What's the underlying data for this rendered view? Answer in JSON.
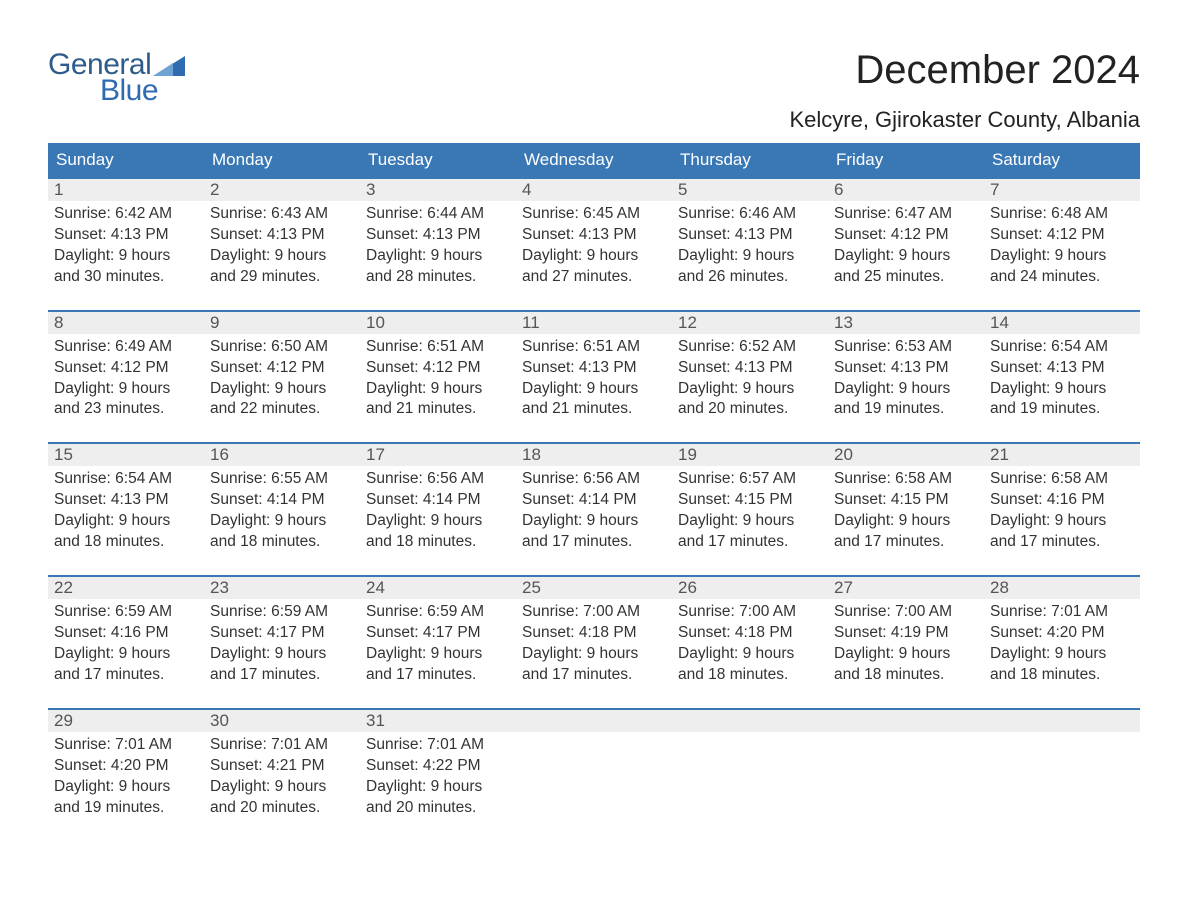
{
  "brand": {
    "top": "General",
    "bottom": "Blue",
    "text_color": "#2e6bb0",
    "flag_color": "#2e6bb0"
  },
  "header": {
    "month_title": "December 2024",
    "location": "Kelcyre, Gjirokaster County, Albania"
  },
  "colors": {
    "header_bg": "#3a78b5",
    "header_text": "#ffffff",
    "daynum_bg": "#eeeeee",
    "daynum_text": "#555555",
    "body_text": "#333333",
    "week_border": "#3a78b5",
    "page_bg": "#ffffff"
  },
  "typography": {
    "month_title_fontsize": 40,
    "location_fontsize": 22,
    "day_header_fontsize": 17,
    "daynum_fontsize": 17,
    "body_fontsize": 15.5
  },
  "day_headers": [
    "Sunday",
    "Monday",
    "Tuesday",
    "Wednesday",
    "Thursday",
    "Friday",
    "Saturday"
  ],
  "weeks": [
    [
      {
        "n": "1",
        "sr": "Sunrise: 6:42 AM",
        "ss": "Sunset: 4:13 PM",
        "dl": "Daylight: 9 hours and 30 minutes."
      },
      {
        "n": "2",
        "sr": "Sunrise: 6:43 AM",
        "ss": "Sunset: 4:13 PM",
        "dl": "Daylight: 9 hours and 29 minutes."
      },
      {
        "n": "3",
        "sr": "Sunrise: 6:44 AM",
        "ss": "Sunset: 4:13 PM",
        "dl": "Daylight: 9 hours and 28 minutes."
      },
      {
        "n": "4",
        "sr": "Sunrise: 6:45 AM",
        "ss": "Sunset: 4:13 PM",
        "dl": "Daylight: 9 hours and 27 minutes."
      },
      {
        "n": "5",
        "sr": "Sunrise: 6:46 AM",
        "ss": "Sunset: 4:13 PM",
        "dl": "Daylight: 9 hours and 26 minutes."
      },
      {
        "n": "6",
        "sr": "Sunrise: 6:47 AM",
        "ss": "Sunset: 4:12 PM",
        "dl": "Daylight: 9 hours and 25 minutes."
      },
      {
        "n": "7",
        "sr": "Sunrise: 6:48 AM",
        "ss": "Sunset: 4:12 PM",
        "dl": "Daylight: 9 hours and 24 minutes."
      }
    ],
    [
      {
        "n": "8",
        "sr": "Sunrise: 6:49 AM",
        "ss": "Sunset: 4:12 PM",
        "dl": "Daylight: 9 hours and 23 minutes."
      },
      {
        "n": "9",
        "sr": "Sunrise: 6:50 AM",
        "ss": "Sunset: 4:12 PM",
        "dl": "Daylight: 9 hours and 22 minutes."
      },
      {
        "n": "10",
        "sr": "Sunrise: 6:51 AM",
        "ss": "Sunset: 4:12 PM",
        "dl": "Daylight: 9 hours and 21 minutes."
      },
      {
        "n": "11",
        "sr": "Sunrise: 6:51 AM",
        "ss": "Sunset: 4:13 PM",
        "dl": "Daylight: 9 hours and 21 minutes."
      },
      {
        "n": "12",
        "sr": "Sunrise: 6:52 AM",
        "ss": "Sunset: 4:13 PM",
        "dl": "Daylight: 9 hours and 20 minutes."
      },
      {
        "n": "13",
        "sr": "Sunrise: 6:53 AM",
        "ss": "Sunset: 4:13 PM",
        "dl": "Daylight: 9 hours and 19 minutes."
      },
      {
        "n": "14",
        "sr": "Sunrise: 6:54 AM",
        "ss": "Sunset: 4:13 PM",
        "dl": "Daylight: 9 hours and 19 minutes."
      }
    ],
    [
      {
        "n": "15",
        "sr": "Sunrise: 6:54 AM",
        "ss": "Sunset: 4:13 PM",
        "dl": "Daylight: 9 hours and 18 minutes."
      },
      {
        "n": "16",
        "sr": "Sunrise: 6:55 AM",
        "ss": "Sunset: 4:14 PM",
        "dl": "Daylight: 9 hours and 18 minutes."
      },
      {
        "n": "17",
        "sr": "Sunrise: 6:56 AM",
        "ss": "Sunset: 4:14 PM",
        "dl": "Daylight: 9 hours and 18 minutes."
      },
      {
        "n": "18",
        "sr": "Sunrise: 6:56 AM",
        "ss": "Sunset: 4:14 PM",
        "dl": "Daylight: 9 hours and 17 minutes."
      },
      {
        "n": "19",
        "sr": "Sunrise: 6:57 AM",
        "ss": "Sunset: 4:15 PM",
        "dl": "Daylight: 9 hours and 17 minutes."
      },
      {
        "n": "20",
        "sr": "Sunrise: 6:58 AM",
        "ss": "Sunset: 4:15 PM",
        "dl": "Daylight: 9 hours and 17 minutes."
      },
      {
        "n": "21",
        "sr": "Sunrise: 6:58 AM",
        "ss": "Sunset: 4:16 PM",
        "dl": "Daylight: 9 hours and 17 minutes."
      }
    ],
    [
      {
        "n": "22",
        "sr": "Sunrise: 6:59 AM",
        "ss": "Sunset: 4:16 PM",
        "dl": "Daylight: 9 hours and 17 minutes."
      },
      {
        "n": "23",
        "sr": "Sunrise: 6:59 AM",
        "ss": "Sunset: 4:17 PM",
        "dl": "Daylight: 9 hours and 17 minutes."
      },
      {
        "n": "24",
        "sr": "Sunrise: 6:59 AM",
        "ss": "Sunset: 4:17 PM",
        "dl": "Daylight: 9 hours and 17 minutes."
      },
      {
        "n": "25",
        "sr": "Sunrise: 7:00 AM",
        "ss": "Sunset: 4:18 PM",
        "dl": "Daylight: 9 hours and 17 minutes."
      },
      {
        "n": "26",
        "sr": "Sunrise: 7:00 AM",
        "ss": "Sunset: 4:18 PM",
        "dl": "Daylight: 9 hours and 18 minutes."
      },
      {
        "n": "27",
        "sr": "Sunrise: 7:00 AM",
        "ss": "Sunset: 4:19 PM",
        "dl": "Daylight: 9 hours and 18 minutes."
      },
      {
        "n": "28",
        "sr": "Sunrise: 7:01 AM",
        "ss": "Sunset: 4:20 PM",
        "dl": "Daylight: 9 hours and 18 minutes."
      }
    ],
    [
      {
        "n": "29",
        "sr": "Sunrise: 7:01 AM",
        "ss": "Sunset: 4:20 PM",
        "dl": "Daylight: 9 hours and 19 minutes."
      },
      {
        "n": "30",
        "sr": "Sunrise: 7:01 AM",
        "ss": "Sunset: 4:21 PM",
        "dl": "Daylight: 9 hours and 20 minutes."
      },
      {
        "n": "31",
        "sr": "Sunrise: 7:01 AM",
        "ss": "Sunset: 4:22 PM",
        "dl": "Daylight: 9 hours and 20 minutes."
      },
      {
        "n": "",
        "sr": "",
        "ss": "",
        "dl": ""
      },
      {
        "n": "",
        "sr": "",
        "ss": "",
        "dl": ""
      },
      {
        "n": "",
        "sr": "",
        "ss": "",
        "dl": ""
      },
      {
        "n": "",
        "sr": "",
        "ss": "",
        "dl": ""
      }
    ]
  ]
}
